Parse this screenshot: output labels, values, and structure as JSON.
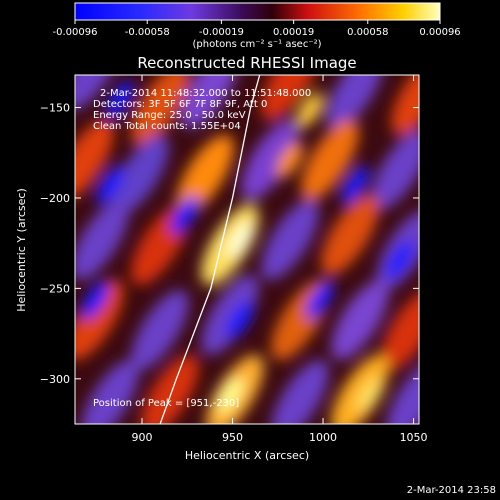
{
  "chart_data": {
    "type": "heatmap",
    "title": "Reconstructed RHESSI Image",
    "xlabel": "Heliocentric X (arcsec)",
    "ylabel": "Heliocentric Y (arcsec)",
    "xlim": [
      863,
      1053
    ],
    "ylim": [
      -325,
      -132
    ],
    "xticks": [
      900,
      950,
      1000,
      1050
    ],
    "yticks": [
      -150,
      -200,
      -250,
      -300
    ],
    "colorbar": {
      "range": [
        -0.00096,
        0.00096
      ],
      "ticks": [
        -0.00096,
        -0.00058,
        -0.00019,
        0.00019,
        0.00058,
        0.00096
      ],
      "tick_labels": [
        "-0.00096",
        "-0.00058",
        "-0.00019",
        "0.00019",
        "0.00058",
        "0.00096"
      ],
      "unit_label": "(photons cm⁻² s⁻¹ asec⁻²)"
    },
    "annotations": [
      "2-Mar-2014 11:48:32.000 to 11:51:48.000",
      "Detectors: 3F 5F 6F 7F 8F 9F, Att 0",
      "Energy Range: 25.0 - 50.0 keV",
      "Clean     Total counts: 1.55E+04"
    ],
    "peak_label": "Position of Peak = [951,-230]",
    "peak": {
      "x": 951,
      "y": -230
    },
    "limb_line": [
      [
        910,
        -325
      ],
      [
        919,
        -300
      ],
      [
        938,
        -250
      ],
      [
        950,
        -200
      ],
      [
        960,
        -150
      ],
      [
        965,
        -132
      ]
    ]
  },
  "footer": {
    "date_stamp": "2-Mar-2014 23:58"
  }
}
